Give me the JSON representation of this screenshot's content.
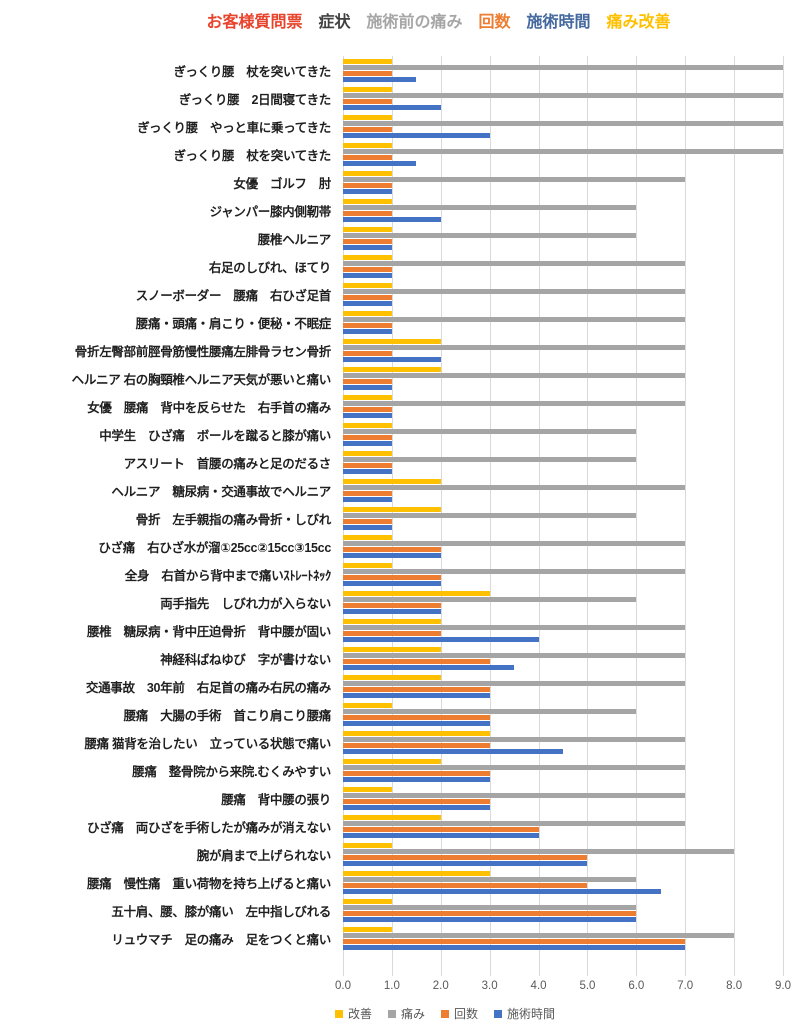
{
  "title": {
    "segments": [
      {
        "text": "お客様質問票",
        "color": "#e8432c"
      },
      {
        "text": "症状",
        "color": "#404040"
      },
      {
        "text": "施術前の痛み",
        "color": "#a6a6a6"
      },
      {
        "text": "回数",
        "color": "#ed7d31"
      },
      {
        "text": "施術時間",
        "color": "#44699e"
      },
      {
        "text": "痛み改善",
        "color": "#ffc000"
      }
    ]
  },
  "chart_data": {
    "type": "bar",
    "orientation": "horizontal",
    "title": "お客様質問票 症状 施術前の痛み 回数 施術時間 痛み改善",
    "xlim": [
      0,
      9
    ],
    "x_ticks": [
      "0.0",
      "1.0",
      "2.0",
      "3.0",
      "4.0",
      "5.0",
      "6.0",
      "7.0",
      "8.0",
      "9.0"
    ],
    "grid": true,
    "legend_position": "bottom",
    "grid_color": "#d9d9d9",
    "categories": [
      "ぎっくり腰　杖を突いてきた",
      "ぎっくり腰　2日間寝てきた",
      "ぎっくり腰　やっと車に乗ってきた",
      "ぎっくり腰　杖を突いてきた",
      "女優　ゴルフ　肘",
      "ジャンパー膝内側靭帯",
      "腰椎ヘルニア",
      "右足のしびれ、ほてり",
      "スノーボーダー　腰痛　右ひざ足首",
      "腰痛・頭痛・肩こり・便秘・不眠症",
      "骨折左臀部前脛骨筋慢性腰痛左腓骨ラセン骨折",
      "ヘルニア 右の胸頸椎ヘルニア天気が悪いと痛い",
      "女優　腰痛　背中を反らせた　右手首の痛み",
      "中学生　ひざ痛　ボールを蹴ると膝が痛い",
      "アスリート　首腰の痛みと足のだるさ",
      "ヘルニア　糖尿病・交通事故でヘルニア",
      "骨折　左手親指の痛み骨折・しびれ",
      "ひざ痛　右ひざ水が溜①25cc②15cc③15cc",
      "全身　右首から背中まで痛いｽﾄﾚｰﾄﾈｯｸ",
      "両手指先　しびれ力が入らない",
      "腰椎　糖尿病・背中圧迫骨折　背中腰が固い",
      "神経科ばねゆび　字が書けない",
      "交通事故　30年前　右足首の痛み右尻の痛み",
      "腰痛　大腸の手術　首こり肩こり腰痛",
      "腰痛 猫背を治したい　立っている状態で痛い",
      "腰痛　整骨院から来院.むくみやすい",
      "腰痛　背中腰の張り",
      "ひざ痛　両ひざを手術したが痛みが消えない",
      "腕が肩まで上げられない",
      "腰痛　慢性痛　重い荷物を持ち上げると痛い",
      "五十肩、腰、膝が痛い　左中指しびれる",
      "リュウマチ　足の痛み　足をつくと痛い"
    ],
    "series": [
      {
        "name": "改善",
        "key": "bar-improvement",
        "color": "#ffc000",
        "values": [
          1,
          1,
          1,
          1,
          1,
          1,
          1,
          1,
          1,
          1,
          2,
          2,
          1,
          1,
          1,
          2,
          2,
          1,
          1,
          3,
          2,
          2,
          2,
          1,
          3,
          2,
          1,
          2,
          1,
          3,
          1,
          1
        ]
      },
      {
        "name": "痛み",
        "key": "bar-pain",
        "color": "#a5a5a5",
        "values": [
          9,
          9,
          9,
          9,
          7,
          6,
          6,
          7,
          7,
          7,
          7,
          7,
          7,
          6,
          6,
          7,
          6,
          7,
          7,
          6,
          7,
          7,
          7,
          6,
          7,
          7,
          7,
          7,
          8,
          6,
          6,
          8
        ]
      },
      {
        "name": "回数",
        "key": "bar-session-count",
        "color": "#ed7d31",
        "values": [
          1,
          1,
          1,
          1,
          1,
          1,
          1,
          1,
          1,
          1,
          1,
          1,
          1,
          1,
          1,
          1,
          1,
          2,
          2,
          2,
          2,
          3,
          3,
          3,
          3,
          3,
          3,
          4,
          5,
          5,
          6,
          7
        ]
      },
      {
        "name": "施術時間",
        "key": "bar-treatment-time",
        "color": "#4472c4",
        "values": [
          1.5,
          2,
          3,
          1.5,
          1,
          2,
          1,
          1,
          1,
          1,
          2,
          1,
          1,
          1,
          1,
          1,
          1,
          2,
          2,
          2,
          4,
          3.5,
          3,
          3,
          4.5,
          3,
          3,
          4,
          5,
          6.5,
          6,
          7
        ]
      }
    ]
  },
  "legend": {
    "items": [
      {
        "label": "改善",
        "color": "#ffc000"
      },
      {
        "label": "痛み",
        "color": "#a5a5a5"
      },
      {
        "label": "回数",
        "color": "#ed7d31"
      },
      {
        "label": "施術時間",
        "color": "#4472c4"
      }
    ]
  }
}
